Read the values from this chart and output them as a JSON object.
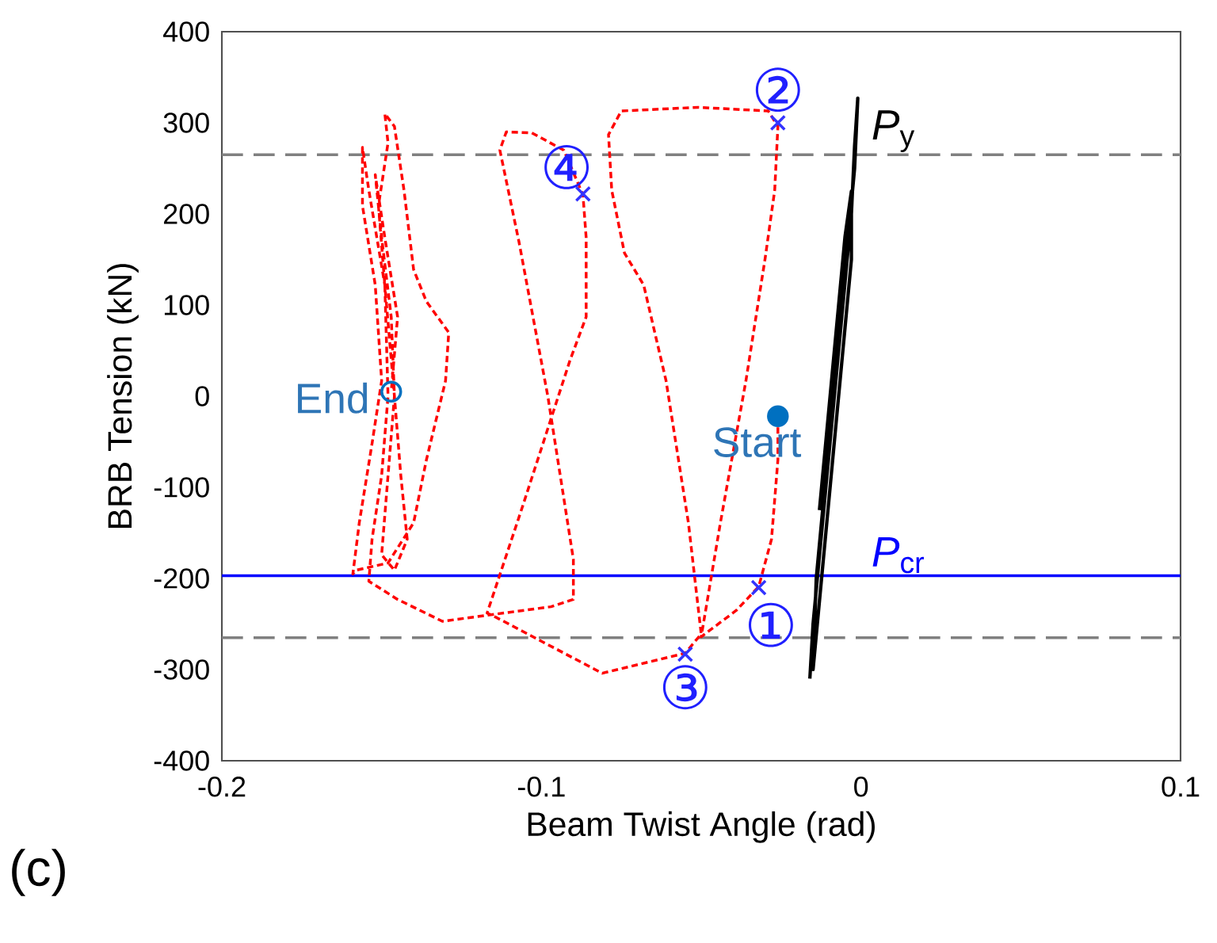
{
  "chart_data": {
    "type": "line",
    "xlabel": "Beam Twist Angle (rad)",
    "ylabel": "BRB Tension (kN)",
    "xlim": [
      -0.2,
      0.1
    ],
    "ylim": [
      -400,
      400
    ],
    "xticks": [
      -0.2,
      -0.1,
      0,
      0.1
    ],
    "yticks": [
      -400,
      -300,
      -200,
      -100,
      0,
      100,
      200,
      300,
      400
    ],
    "series": [
      {
        "color": "#ff0000",
        "line_style": "dashed",
        "marker": "none",
        "x": [
          -0.026,
          -0.026,
          -0.028,
          -0.032,
          -0.039,
          -0.05,
          -0.044,
          -0.036,
          -0.03,
          -0.027,
          -0.026,
          -0.029,
          -0.051,
          -0.075,
          -0.079,
          -0.078,
          -0.074,
          -0.068,
          -0.061,
          -0.054,
          -0.05,
          -0.055,
          -0.081,
          -0.114,
          -0.117,
          -0.106,
          -0.091,
          -0.086,
          -0.086,
          -0.087,
          -0.093,
          -0.103,
          -0.111,
          -0.113,
          -0.107,
          -0.098,
          -0.09,
          -0.09,
          -0.097,
          -0.131,
          -0.145,
          -0.154,
          -0.153,
          -0.15,
          -0.148,
          -0.149,
          -0.151,
          -0.148,
          -0.149,
          -0.146,
          -0.143,
          -0.14,
          -0.136,
          -0.129,
          -0.13,
          -0.136,
          -0.14,
          -0.148,
          -0.158,
          -0.159,
          -0.157,
          -0.153,
          -0.15,
          -0.152,
          -0.156,
          -0.156,
          -0.154,
          -0.149,
          -0.146,
          -0.144,
          -0.142,
          -0.146,
          -0.15,
          -0.148,
          -0.146,
          -0.147,
          -0.15,
          -0.152,
          -0.149,
          -0.145,
          -0.147
        ],
        "values": [
          -23,
          -70,
          -157,
          -209,
          -235,
          -264,
          -139,
          17,
          151,
          226,
          296,
          313,
          317,
          313,
          287,
          226,
          157,
          122,
          17,
          -139,
          -261,
          -282,
          -304,
          -243,
          -238,
          -122,
          40,
          87,
          174,
          221,
          270,
          289,
          290,
          270,
          169,
          0,
          -179,
          -223,
          -231,
          -247,
          -223,
          -203,
          -157,
          -87,
          0,
          122,
          209,
          278,
          310,
          296,
          226,
          139,
          104,
          70,
          17,
          -70,
          -139,
          -183,
          -191,
          -195,
          -139,
          -52,
          17,
          122,
          209,
          273,
          226,
          122,
          0,
          -87,
          -157,
          -191,
          -174,
          -87,
          0,
          87,
          174,
          243,
          174,
          87,
          5
        ]
      },
      {
        "color": "#000000",
        "line_style": "solid",
        "marker": "none",
        "x": [
          -0.016,
          -0.015,
          -0.013,
          -0.011,
          -0.009,
          -0.007,
          -0.005,
          -0.003,
          -0.002,
          -0.001,
          -0.002,
          -0.004,
          -0.006,
          -0.008,
          -0.01,
          -0.012,
          -0.014,
          -0.015,
          -0.013,
          -0.011,
          -0.009,
          -0.007,
          -0.005,
          -0.003,
          -0.003,
          -0.005,
          -0.007,
          -0.009,
          -0.011,
          -0.013
        ],
        "values": [
          -310,
          -250,
          -175,
          -100,
          -25,
          50,
          125,
          200,
          275,
          327,
          250,
          175,
          100,
          25,
          -50,
          -125,
          -200,
          -300,
          -225,
          -150,
          -75,
          0,
          75,
          150,
          225,
          175,
          100,
          25,
          -50,
          -125
        ]
      },
      {
        "type": "scatter",
        "color": "#3333ff",
        "marker": "cross",
        "x": [
          -0.032,
          -0.026,
          -0.055,
          -0.087
        ],
        "values": [
          -210,
          300,
          -283,
          222
        ]
      },
      {
        "type": "scatter",
        "color": "#0070c0",
        "marker": "circle",
        "x": [
          -0.026
        ],
        "values": [
          -22
        ]
      },
      {
        "type": "scatter",
        "color": "#0070c0",
        "marker": "circle",
        "x": [
          -0.147
        ],
        "values": [
          5
        ]
      }
    ],
    "ref_lines": [
      {
        "axis": "y",
        "value": 265,
        "label": "*P*$_{y}$",
        "color": "#808080",
        "line_style": "dashed"
      },
      {
        "axis": "y",
        "value": -265,
        "color": "#808080",
        "line_style": "dashed"
      },
      {
        "axis": "y",
        "value": -197,
        "label": "*P*$_{cr}$",
        "color": "#0000ff",
        "line_style": "solid"
      }
    ],
    "annotations": [
      {
        "text": "①",
        "x": -0.032,
        "y": -210
      },
      {
        "text": "②",
        "x": -0.026,
        "y": 300
      },
      {
        "text": "③",
        "x": -0.055,
        "y": -283
      },
      {
        "text": "④",
        "x": -0.087,
        "y": 222
      },
      {
        "text": "Start",
        "x": -0.026,
        "y": -22
      },
      {
        "text": "End",
        "x": -0.147,
        "y": 5
      },
      "(c)"
    ]
  }
}
